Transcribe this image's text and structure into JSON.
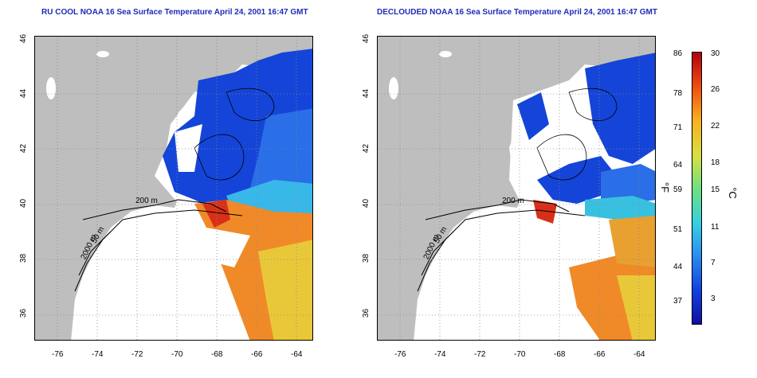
{
  "titles": {
    "left": "RU COOL NOAA 16 Sea Surface Temperature April 24, 2001 16:47 GMT",
    "right": "DECLOUDED NOAA 16 Sea Surface Temperature April 24, 2001 16:47 GMT"
  },
  "axes": {
    "x_ticks": [
      "-76",
      "-74",
      "-72",
      "-70",
      "-68",
      "-66",
      "-64"
    ],
    "y_ticks": [
      "46",
      "44",
      "42",
      "40",
      "38",
      "36"
    ],
    "lon_range": [
      -77,
      -63
    ],
    "lat_range": [
      35,
      46
    ],
    "grid": "dotted"
  },
  "contour_labels": {
    "isobath_200": "200 m",
    "isobath_2000": "2000 m",
    "isobath_50": "50 m"
  },
  "colorbar": {
    "fahrenheit_ticks": [
      "86",
      "78",
      "71",
      "64",
      "59",
      "51",
      "44",
      "37"
    ],
    "celsius_ticks": [
      "30",
      "26",
      "22",
      "18",
      "15",
      "11",
      "7",
      "3"
    ],
    "fahrenheit_unit": "°F",
    "celsius_unit": "°C",
    "range_celsius": [
      0,
      30
    ]
  },
  "colors": {
    "land": "#bebebe",
    "cold": "#1040d8",
    "cool": "#30b0f0",
    "warm": "#f07a20",
    "title": "#1f2bb8"
  }
}
